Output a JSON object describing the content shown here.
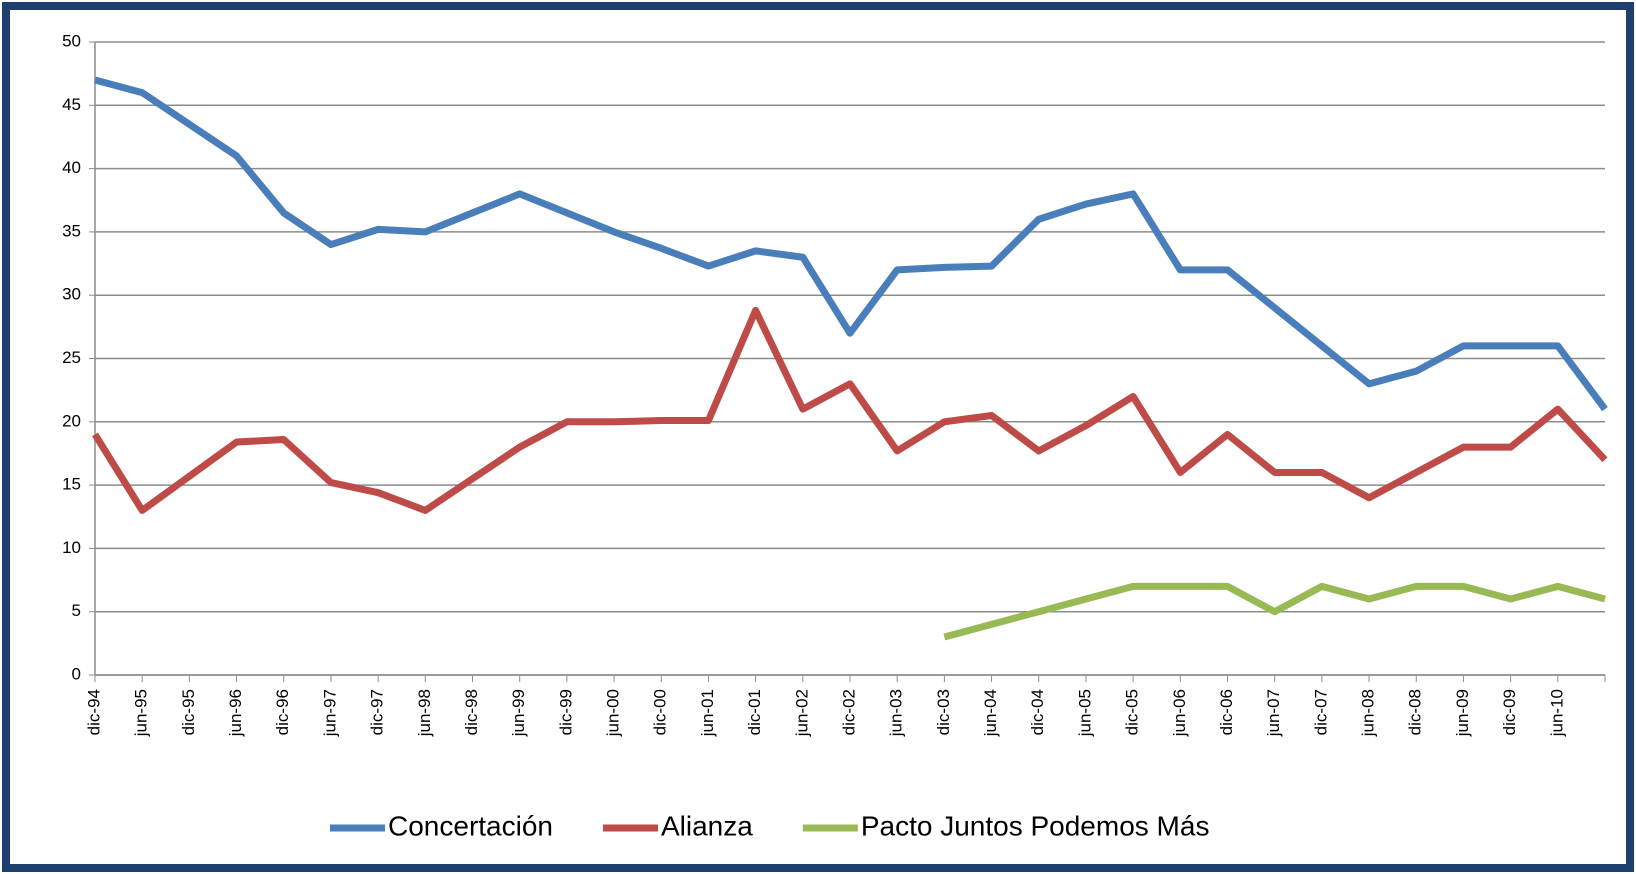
{
  "chart_data": {
    "type": "line",
    "categories": [
      "dic-94",
      "jun-95",
      "dic-95",
      "jun-96",
      "dic-96",
      "jun-97",
      "dic-97",
      "jun-98",
      "dic-98",
      "jun-99",
      "dic-99",
      "jun-00",
      "dic-00",
      "jun-01",
      "dic-01",
      "jun-02",
      "dic-02",
      "jun-03",
      "dic-03",
      "jun-04",
      "dic-04",
      "jun-05",
      "dic-05",
      "jun-06",
      "dic-06",
      "jun-07",
      "dic-07",
      "jun-08",
      "dic-08",
      "jun-09",
      "dic-09",
      "jun-10",
      null
    ],
    "series": [
      {
        "name": "Concertación",
        "color": "#4a7ebb",
        "values": [
          47,
          46,
          43.5,
          41,
          36.5,
          34,
          35.2,
          35,
          36.5,
          38,
          36.5,
          35,
          33.7,
          32.3,
          33.5,
          33,
          27,
          32,
          32.2,
          32.3,
          36,
          37.2,
          38,
          32,
          32,
          29,
          26,
          23,
          24,
          26,
          26,
          26,
          21
        ]
      },
      {
        "name": "Alianza",
        "color": "#be4b48",
        "values": [
          19,
          13,
          15.7,
          18.4,
          18.6,
          15.2,
          14.4,
          13,
          15.5,
          18,
          20,
          20,
          20.1,
          20.1,
          28.8,
          21,
          23,
          17.7,
          20,
          20.5,
          17.7,
          19.7,
          22,
          16,
          19,
          16,
          16,
          14,
          16,
          18,
          18,
          21,
          17
        ]
      },
      {
        "name": "Pacto Juntos Podemos Más",
        "color": "#98b954",
        "values": [
          null,
          null,
          null,
          null,
          null,
          null,
          null,
          null,
          null,
          null,
          null,
          null,
          null,
          null,
          null,
          null,
          null,
          null,
          3,
          4,
          5,
          6,
          7,
          7,
          7,
          5,
          7,
          6,
          7,
          7,
          6,
          7,
          6
        ]
      }
    ],
    "ylim": [
      0,
      50
    ],
    "yticks": [
      0,
      5,
      10,
      15,
      20,
      25,
      30,
      35,
      40,
      45,
      50
    ],
    "grid": true,
    "legend": "bottom"
  }
}
